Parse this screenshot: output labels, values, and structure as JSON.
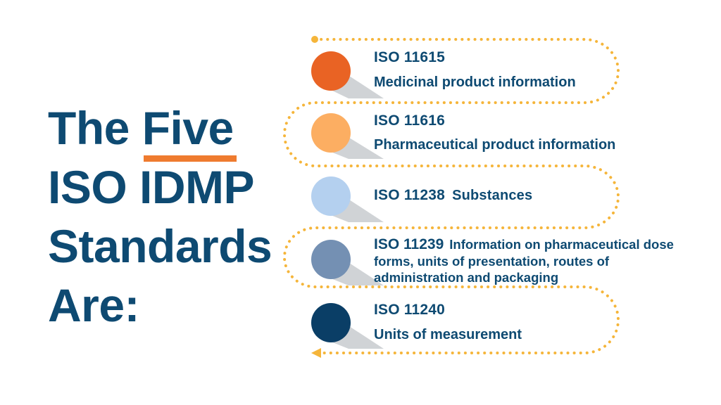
{
  "title": {
    "line1_prefix": "The",
    "line1_emphasis": "Five",
    "line2": "ISO IDMP",
    "line3": "Standards",
    "line4": "Are:"
  },
  "colors": {
    "navy": "#0e4a72",
    "accent_orange": "#ef7b2f",
    "dots": "#f5b53a",
    "shadow": "#d0d3d6"
  },
  "standards": [
    {
      "code": "ISO 11615",
      "description": "Medicinal product information",
      "color": "#e96324"
    },
    {
      "code": "ISO 11616",
      "description": "Pharmaceutical product information",
      "color": "#fcae62"
    },
    {
      "code": "ISO 11238",
      "description": "Substances",
      "color": "#b4d0ef"
    },
    {
      "code": "ISO 11239",
      "description": "Information on pharmaceutical dose forms, units of presentation, routes of administration and packaging",
      "color": "#7490b3"
    },
    {
      "code": "ISO 11240",
      "description": "Units of measurement",
      "color": "#0a3e66"
    }
  ]
}
